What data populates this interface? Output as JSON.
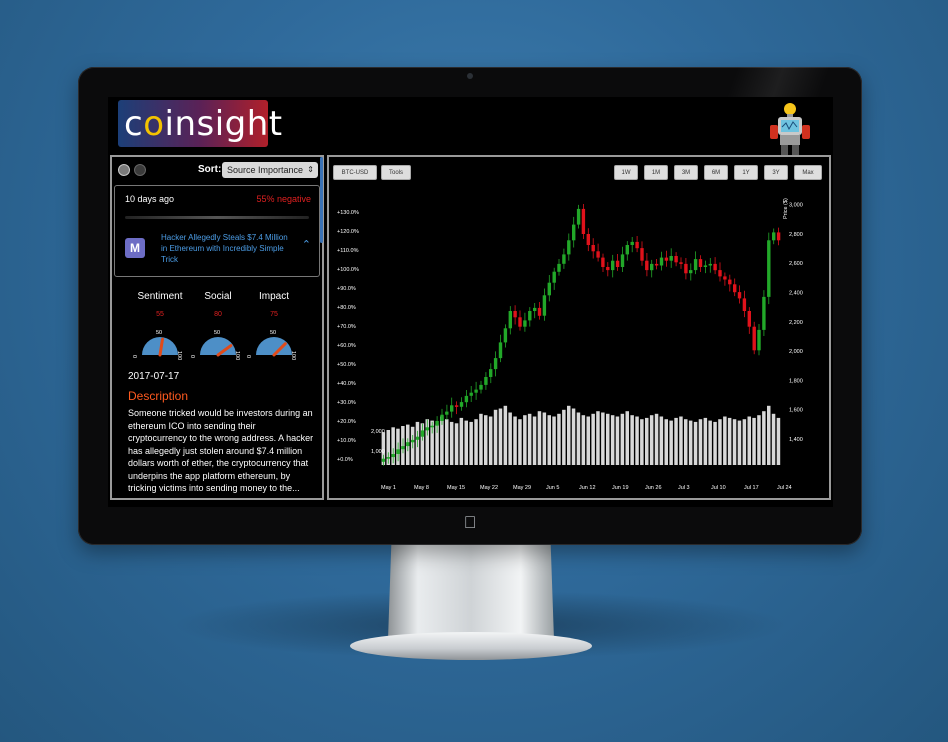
{
  "app": {
    "logo_text_pre": "c",
    "logo_text_bulb": "o",
    "logo_text_post": "insight"
  },
  "left_panel": {
    "sort_label": "Sort:",
    "sort_value": "Source Importance",
    "news": {
      "time": "10 days ago",
      "sentiment": "55% negative",
      "source_letter": "M",
      "headline": "Hacker Allegedly Steals $7.4 Million in Ethereum with Incredibly Simple Trick"
    },
    "metrics": [
      {
        "title": "Sentiment",
        "value": "55",
        "needle": 0.55
      },
      {
        "title": "Social",
        "value": "80",
        "needle": 0.8
      },
      {
        "title": "Impact",
        "value": "75",
        "needle": 0.75
      }
    ],
    "gauge_labels": {
      "min": "0",
      "mid": "50",
      "max": "100"
    },
    "date": "2017-07-17",
    "description_title": "Description",
    "description_text": "Someone tricked would be investors during an ethereum ICO into sending their cryptocurrency to the wrong address. A hacker has allegedly just stolen around $7.4 million dollars worth of ether, the cryptocurrency that underpins the app platform ethereum, by tricking victims into sending money to the..."
  },
  "chart_panel": {
    "pair_button": "BTC-USD",
    "tools_button": "Tools",
    "range_buttons": [
      "1W",
      "1M",
      "3M",
      "6M",
      "1Y",
      "3Y",
      "Max"
    ]
  },
  "colors": {
    "up": "#22a829",
    "down": "#e0121b",
    "volume": "#d8d8d8",
    "negative_text": "#e02020",
    "description_title": "#ff5a1f",
    "headline_link": "#4c9de6"
  },
  "chart_data": {
    "type": "candlestick",
    "y_axis_label": "Price ($)",
    "x_tick_labels": [
      "May 1",
      "May 8",
      "May 15",
      "May 22",
      "May 29",
      "Jun 5",
      "Jun 12",
      "Jun 19",
      "Jun 26",
      "Jul 3",
      "Jul 10",
      "Jul 17",
      "Jul 24"
    ],
    "left_axis_ticks": [
      "+0.0%",
      "+10.0%",
      "+20.0%",
      "+30.0%",
      "+40.0%",
      "+50.0%",
      "+60.0%",
      "+70.0%",
      "+80.0%",
      "+90.0%",
      "+100.0%",
      "+110.0%",
      "+120.0%",
      "+130.0%"
    ],
    "right_axis_ticks": [
      "1,400",
      "1,600",
      "1,800",
      "2,000",
      "2,200",
      "2,400",
      "2,600",
      "2,800",
      "3,000"
    ],
    "volume_axis_ticks": [
      "1,000",
      "2,000"
    ],
    "price_range": [
      1320,
      3000
    ],
    "close": [
      1360,
      1370,
      1390,
      1420,
      1440,
      1465,
      1480,
      1500,
      1540,
      1560,
      1570,
      1600,
      1640,
      1660,
      1700,
      1690,
      1720,
      1760,
      1780,
      1800,
      1830,
      1880,
      1930,
      2000,
      2100,
      2190,
      2300,
      2260,
      2200,
      2240,
      2300,
      2320,
      2270,
      2400,
      2480,
      2550,
      2600,
      2660,
      2750,
      2850,
      2950,
      2790,
      2720,
      2680,
      2640,
      2580,
      2560,
      2620,
      2580,
      2660,
      2720,
      2740,
      2700,
      2620,
      2560,
      2600,
      2590,
      2640,
      2620,
      2650,
      2610,
      2600,
      2540,
      2560,
      2630,
      2580,
      2590,
      2600,
      2560,
      2520,
      2500,
      2470,
      2420,
      2380,
      2300,
      2200,
      2050,
      2180,
      2390,
      2750,
      2800,
      2750
    ],
    "volume": [
      1220,
      1300,
      1400,
      1350,
      1450,
      1500,
      1420,
      1600,
      1550,
      1700,
      1650,
      1500,
      1800,
      1700,
      1600,
      1550,
      1750,
      1650,
      1600,
      1700,
      1900,
      1850,
      1800,
      2050,
      2100,
      2200,
      1950,
      1800,
      1700,
      1850,
      1900,
      1800,
      2000,
      1950,
      1850,
      1800,
      1900,
      2050,
      2200,
      2100,
      1950,
      1850,
      1800,
      1900,
      2000,
      1950,
      1900,
      1850,
      1800,
      1900,
      2000,
      1850,
      1800,
      1700,
      1750,
      1850,
      1900,
      1800,
      1700,
      1650,
      1750,
      1800,
      1700,
      1650,
      1600,
      1700,
      1750,
      1650,
      1600,
      1700,
      1800,
      1750,
      1700,
      1650,
      1700,
      1800,
      1750,
      1850,
      2000,
      2200,
      1900,
      1750
    ]
  }
}
